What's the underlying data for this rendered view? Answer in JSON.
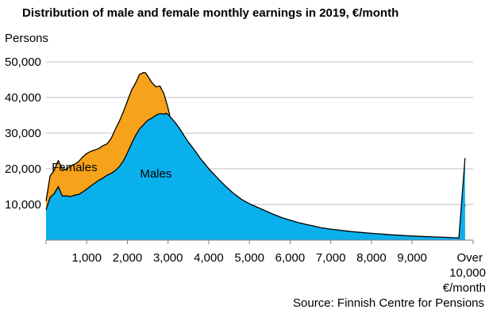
{
  "chart_data": {
    "type": "area",
    "title": "Distribution of male and female monthly earnings in 2019, €/month",
    "ylabel": "Persons",
    "xlabel": "",
    "source": "Source: Finnish Centre for Pensions",
    "ylim": [
      0,
      50000
    ],
    "xlim": [
      0,
      10500
    ],
    "yticks": [
      {
        "value": 10000,
        "label": "10,000"
      },
      {
        "value": 20000,
        "label": "20,000"
      },
      {
        "value": 30000,
        "label": "30,000"
      },
      {
        "value": 40000,
        "label": "40,000"
      },
      {
        "value": 50000,
        "label": "50,000"
      }
    ],
    "xticks": [
      {
        "value": 1000,
        "label": "1,000"
      },
      {
        "value": 2000,
        "label": "2,000"
      },
      {
        "value": 3000,
        "label": "3,000"
      },
      {
        "value": 4000,
        "label": "4,000"
      },
      {
        "value": 5000,
        "label": "5,000"
      },
      {
        "value": 6000,
        "label": "6,000"
      },
      {
        "value": 7000,
        "label": "7,000"
      },
      {
        "value": 8000,
        "label": "8,000"
      },
      {
        "value": 9000,
        "label": "9,000"
      },
      {
        "value": 10500,
        "label": "Over 10,000 €/month"
      }
    ],
    "grid": true,
    "series": [
      {
        "name": "Females",
        "color": "#F7A21B",
        "stroke": "#000000",
        "points": [
          [
            0,
            11000
          ],
          [
            100,
            18000
          ],
          [
            200,
            19500
          ],
          [
            250,
            21000
          ],
          [
            300,
            22300
          ],
          [
            400,
            20000
          ],
          [
            500,
            19800
          ],
          [
            600,
            20800
          ],
          [
            700,
            21300
          ],
          [
            800,
            22000
          ],
          [
            900,
            23300
          ],
          [
            1000,
            24300
          ],
          [
            1100,
            24900
          ],
          [
            1200,
            25300
          ],
          [
            1300,
            25700
          ],
          [
            1400,
            26500
          ],
          [
            1500,
            27000
          ],
          [
            1600,
            28500
          ],
          [
            1700,
            31000
          ],
          [
            1800,
            33300
          ],
          [
            1900,
            36000
          ],
          [
            2000,
            39000
          ],
          [
            2100,
            42000
          ],
          [
            2200,
            44000
          ],
          [
            2300,
            46500
          ],
          [
            2400,
            47000
          ],
          [
            2450,
            46900
          ],
          [
            2500,
            46000
          ],
          [
            2600,
            44200
          ],
          [
            2700,
            43000
          ],
          [
            2800,
            43200
          ],
          [
            2900,
            41000
          ],
          [
            3000,
            37000
          ],
          [
            3100,
            32000
          ],
          [
            3200,
            27000
          ],
          [
            3300,
            24500
          ],
          [
            3400,
            22400
          ],
          [
            3500,
            20600
          ],
          [
            3600,
            19000
          ],
          [
            3700,
            17500
          ],
          [
            3800,
            16000
          ],
          [
            3900,
            14600
          ],
          [
            4000,
            13200
          ],
          [
            4200,
            11000
          ],
          [
            4400,
            9200
          ],
          [
            4600,
            7500
          ],
          [
            4800,
            6800
          ],
          [
            5000,
            5500
          ],
          [
            5200,
            4500
          ],
          [
            5400,
            3700
          ],
          [
            5600,
            3100
          ],
          [
            5800,
            2700
          ],
          [
            6000,
            2300
          ],
          [
            6200,
            2000
          ],
          [
            6400,
            1800
          ],
          [
            6600,
            1600
          ],
          [
            6800,
            1400
          ],
          [
            7000,
            1200
          ],
          [
            7500,
            900
          ],
          [
            8000,
            700
          ],
          [
            8500,
            550
          ],
          [
            9000,
            400
          ],
          [
            9500,
            320
          ],
          [
            9800,
            270
          ],
          [
            10000,
            230
          ],
          [
            10150,
            250
          ],
          [
            10300,
            10000
          ]
        ]
      },
      {
        "name": "Males",
        "color": "#0AB0EC",
        "stroke": "#000000",
        "points": [
          [
            0,
            8500
          ],
          [
            100,
            12000
          ],
          [
            200,
            13000
          ],
          [
            300,
            15000
          ],
          [
            400,
            12400
          ],
          [
            500,
            12400
          ],
          [
            600,
            12200
          ],
          [
            700,
            12600
          ],
          [
            800,
            12800
          ],
          [
            900,
            13500
          ],
          [
            1000,
            14300
          ],
          [
            1100,
            15200
          ],
          [
            1200,
            16000
          ],
          [
            1300,
            16800
          ],
          [
            1400,
            17400
          ],
          [
            1500,
            18200
          ],
          [
            1600,
            18700
          ],
          [
            1700,
            19500
          ],
          [
            1800,
            20600
          ],
          [
            1900,
            22200
          ],
          [
            2000,
            24500
          ],
          [
            2100,
            27000
          ],
          [
            2200,
            29300
          ],
          [
            2300,
            31200
          ],
          [
            2400,
            32400
          ],
          [
            2500,
            33600
          ],
          [
            2600,
            34200
          ],
          [
            2700,
            35000
          ],
          [
            2800,
            35500
          ],
          [
            2900,
            35300
          ],
          [
            2950,
            35600
          ],
          [
            3000,
            35200
          ],
          [
            3100,
            34000
          ],
          [
            3200,
            32600
          ],
          [
            3300,
            31000
          ],
          [
            3400,
            29200
          ],
          [
            3500,
            27500
          ],
          [
            3600,
            26000
          ],
          [
            3700,
            24500
          ],
          [
            3800,
            22800
          ],
          [
            3900,
            21500
          ],
          [
            4000,
            20000
          ],
          [
            4200,
            17600
          ],
          [
            4400,
            15300
          ],
          [
            4600,
            13200
          ],
          [
            4800,
            11500
          ],
          [
            5000,
            10200
          ],
          [
            5200,
            9200
          ],
          [
            5400,
            8200
          ],
          [
            5600,
            7200
          ],
          [
            5800,
            6300
          ],
          [
            6000,
            5600
          ],
          [
            6200,
            4900
          ],
          [
            6400,
            4400
          ],
          [
            6600,
            3900
          ],
          [
            6800,
            3400
          ],
          [
            7000,
            3100
          ],
          [
            7500,
            2400
          ],
          [
            8000,
            1900
          ],
          [
            8500,
            1500
          ],
          [
            9000,
            1150
          ],
          [
            9500,
            900
          ],
          [
            9800,
            800
          ],
          [
            10000,
            700
          ],
          [
            10150,
            650
          ],
          [
            10300,
            23000
          ]
        ]
      }
    ],
    "annotations": [
      {
        "text": "Females",
        "x": 700,
        "y": 19300
      },
      {
        "text": "Males",
        "x": 2700,
        "y": 17600
      }
    ]
  }
}
